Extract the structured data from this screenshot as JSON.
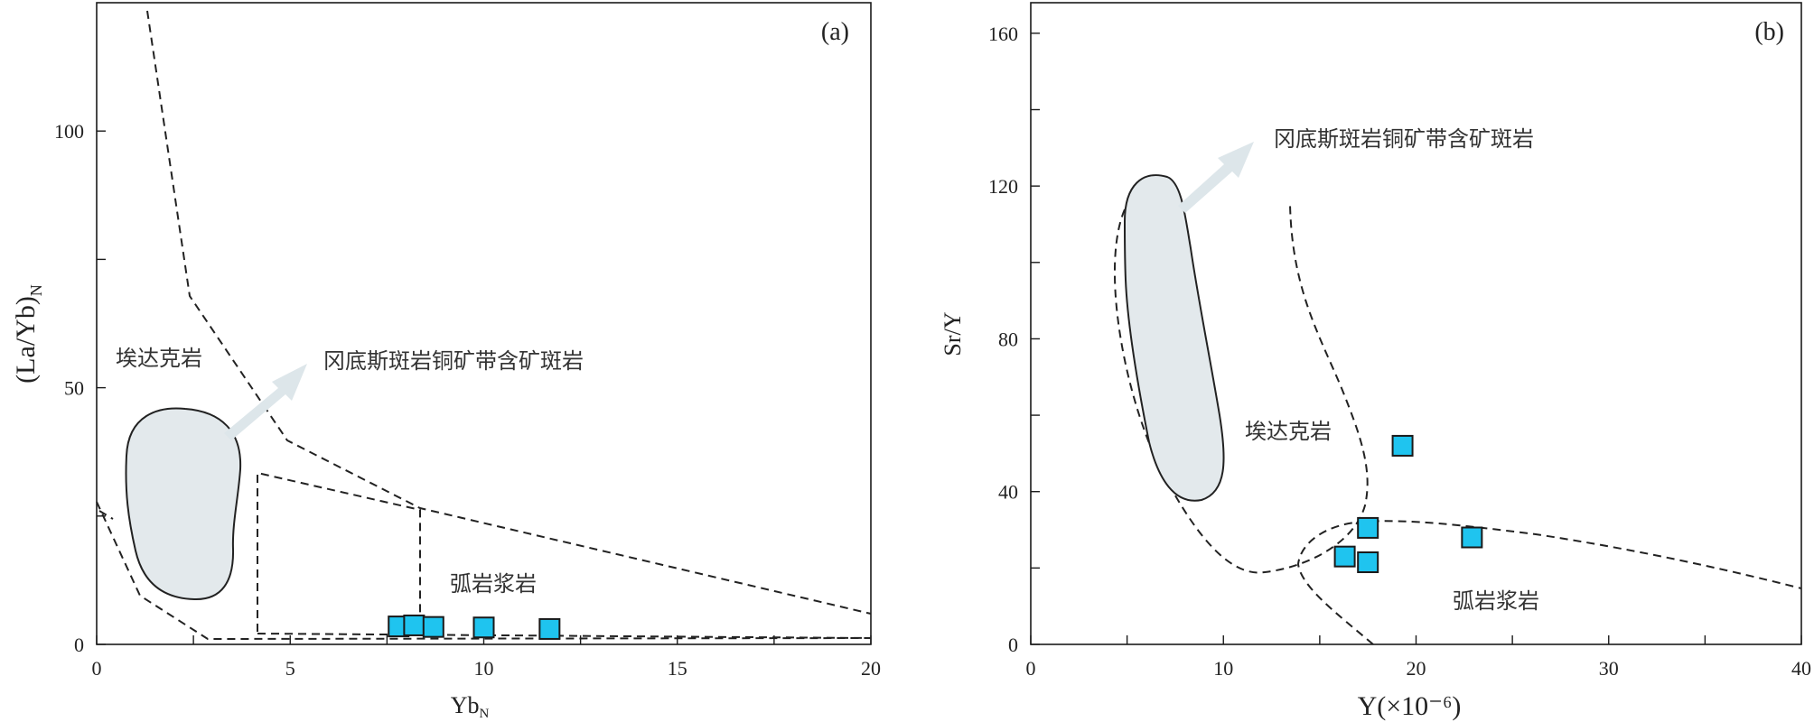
{
  "chart_data": [
    {
      "type": "scatter",
      "panel": "(a)",
      "xlabel": "Yb",
      "xlabel_sub": "N",
      "ylabel": "(La/Yb)",
      "ylabel_sub": "N",
      "xlim": [
        0,
        20
      ],
      "ylim": [
        0,
        125
      ],
      "x_ticks": [
        0,
        5,
        10,
        15,
        20
      ],
      "y_ticks": [
        0,
        50,
        100
      ],
      "fields": {
        "adakite": "埃达克岩",
        "gangdese": "冈底斯斑岩铜矿带含矿斑岩",
        "arc": "弧岩浆岩"
      },
      "series": [
        {
          "x": [
            7.8,
            8.2,
            8.7,
            10.0,
            11.7
          ],
          "y": [
            3.5,
            3.7,
            3.4,
            3.3,
            3.0
          ]
        }
      ]
    },
    {
      "type": "scatter",
      "panel": "(b)",
      "xlabel": "Y(×10⁻⁶)",
      "ylabel": "Sr/Y",
      "xlim": [
        0,
        40
      ],
      "ylim": [
        0,
        168
      ],
      "x_ticks": [
        0,
        10,
        20,
        30,
        40
      ],
      "y_ticks": [
        0,
        40,
        80,
        120,
        160
      ],
      "fields": {
        "gangdese": "冈底斯斑岩铜矿带含矿斑岩",
        "adakite": "埃达克岩",
        "arc": "弧岩浆岩"
      },
      "series": [
        {
          "x": [
            19.3,
            17.5,
            16.3,
            17.5,
            22.9
          ],
          "y": [
            52,
            30.5,
            23,
            21.5,
            28
          ]
        }
      ]
    }
  ]
}
